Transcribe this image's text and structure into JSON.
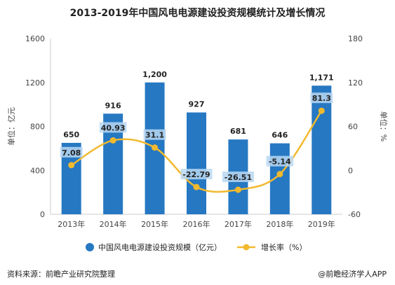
{
  "title": "2013-2019年中国风电电源建设投资规模统计及增长情况",
  "source": "资料来源：前瞻产业研究院整理",
  "brand": "@前瞻经济学人APP",
  "colors": {
    "bar": "#2678c2",
    "line": "#f2b92e",
    "axis_text": "#444444",
    "grid": "#e6e6e6",
    "line_label_bg": "#b9d7f2"
  },
  "chart_data": {
    "type": "bar",
    "title": "2013-2019年中国风电电源建设投资规模统计及增长情况",
    "categories": [
      "2013年",
      "2014年",
      "2015年",
      "2016年",
      "2017年",
      "2018年",
      "2019年"
    ],
    "y_left": {
      "label": "单位：亿元",
      "min": 0,
      "max": 1600,
      "ticks": [
        "0",
        "400",
        "800",
        "1200",
        "1600"
      ]
    },
    "y_right": {
      "label": "单位：%",
      "min": -60,
      "max": 180,
      "ticks": [
        "-60",
        "0",
        "60",
        "120",
        "180"
      ]
    },
    "series": [
      {
        "name": "中国风电电源建设投资规模（亿元）",
        "type": "bar",
        "axis": "left",
        "values": [
          650,
          916,
          1200,
          927,
          681,
          646,
          1171
        ],
        "labels": [
          "650",
          "916",
          "1,200",
          "927",
          "681",
          "646",
          "1,171"
        ]
      },
      {
        "name": "增长率（%）",
        "type": "line",
        "axis": "right",
        "values": [
          7.08,
          40.93,
          31.1,
          -22.79,
          -26.51,
          -5.14,
          81.3
        ],
        "labels": [
          "7.08",
          "40.93",
          "31.1",
          "-22.79",
          "-26.51",
          "-5.14",
          "81.3"
        ]
      }
    ],
    "legend_position": "bottom",
    "grid": false
  }
}
